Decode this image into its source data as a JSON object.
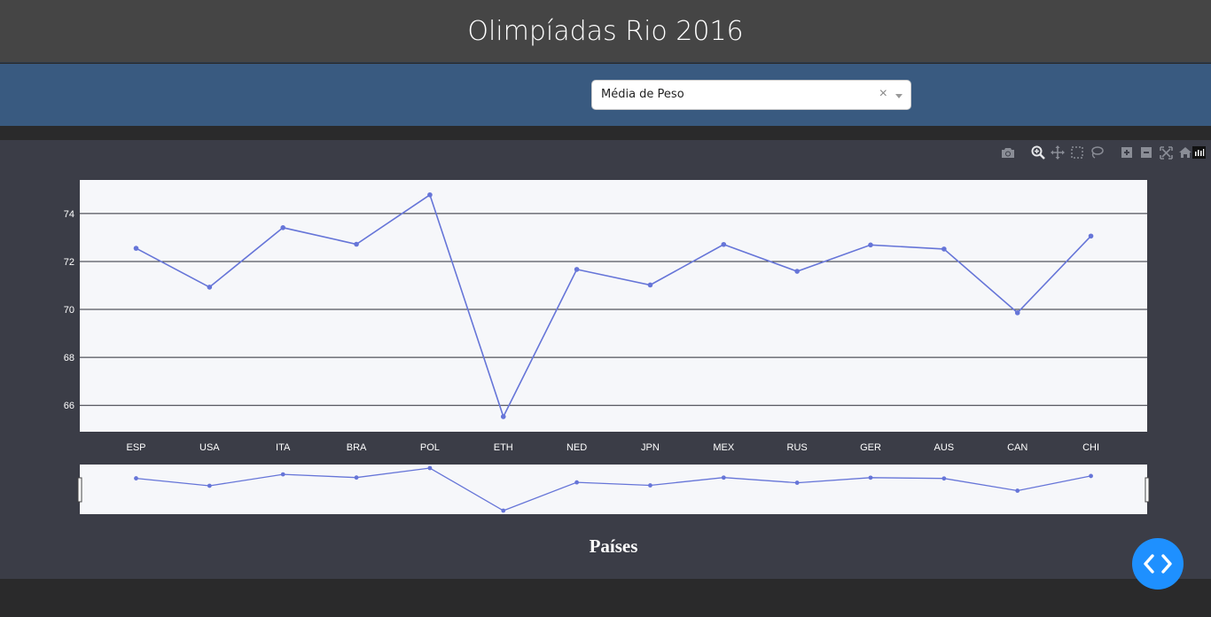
{
  "header": {
    "title": "Olimpíadas Rio 2016"
  },
  "filter": {
    "selected_value": "Média de Peso",
    "clear_symbol": "×"
  },
  "modebar": {
    "icons": [
      "camera-icon",
      "zoom-icon",
      "pan-icon",
      "box-select-icon",
      "lasso-select-icon",
      "zoom-in-icon",
      "zoom-out-icon",
      "autoscale-icon",
      "reset-axes-icon"
    ]
  },
  "colors": {
    "line": "#6675d8",
    "plot_bg": "#f6f7fa",
    "panel_bg": "#3b3d47",
    "header_bg": "#454545",
    "filterbar_bg": "#395a80",
    "fab": "#1e90ff"
  },
  "chart_data": {
    "type": "line",
    "categories": [
      "ESP",
      "USA",
      "ITA",
      "BRA",
      "POL",
      "ETH",
      "NED",
      "JPN",
      "MEX",
      "RUS",
      "GER",
      "AUS",
      "CAN",
      "CHI"
    ],
    "series": [
      {
        "values": [
          72.55,
          70.93,
          73.41,
          72.72,
          74.78,
          65.53,
          71.67,
          71.02,
          72.71,
          71.59,
          72.69,
          72.52,
          69.86,
          73.06
        ]
      }
    ],
    "xlabel": "Países",
    "ylabel": "",
    "ylim": [
      64.9,
      75.4
    ],
    "yticks": [
      66,
      68,
      70,
      72,
      74
    ],
    "grid": true,
    "rangeslider": true
  }
}
